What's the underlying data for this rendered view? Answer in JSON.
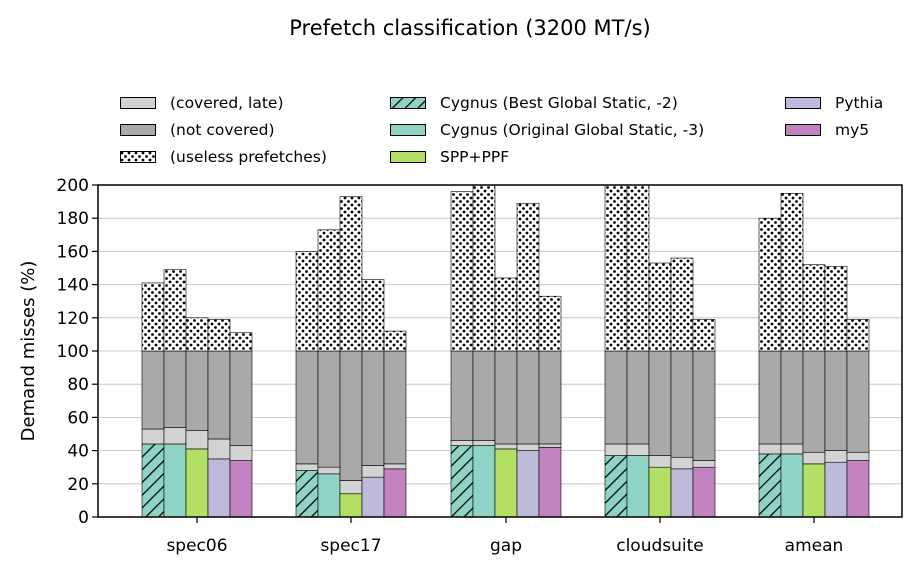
{
  "chart_data": {
    "type": "bar",
    "stacked": true,
    "title": "Prefetch classification (3200 MT/s)",
    "xlabel": "",
    "ylabel": "Demand misses (%)",
    "ylim": [
      0,
      200
    ],
    "yticks": [
      0,
      20,
      40,
      60,
      80,
      100,
      120,
      140,
      160,
      180,
      200
    ],
    "grid": "y",
    "legend_position": "top",
    "categories": [
      "spec06",
      "spec17",
      "gap",
      "cloudsuite",
      "amean"
    ],
    "prefetchers": [
      {
        "name": "Cygnus (Best Global Static, -2)",
        "color": "#8fd3c5",
        "hatch": true
      },
      {
        "name": "Cygnus (Original Global Static, -3)",
        "color": "#8fd3c5",
        "hatch": false
      },
      {
        "name": "SPP+PPF",
        "color": "#b2df64",
        "hatch": false
      },
      {
        "name": "Pythia",
        "color": "#bebada",
        "hatch": false
      },
      {
        "name": "my5",
        "color": "#c283c0",
        "hatch": false
      }
    ],
    "segment_types": [
      {
        "name": "(covered, late)",
        "color": "#d3d3d3"
      },
      {
        "name": "(not covered)",
        "color": "#a9a9a9"
      },
      {
        "name": "(useless prefetches)",
        "color": "#ffffff",
        "dotted": true
      }
    ],
    "series": [
      {
        "name": "Cygnus (Best Global Static, -2)",
        "covered_timely": [
          44,
          28,
          43,
          37,
          38
        ],
        "covered_late": [
          9,
          4,
          3,
          7,
          6
        ],
        "not_covered": [
          47,
          68,
          54,
          56,
          56
        ],
        "useless": [
          41,
          60,
          96,
          100,
          80
        ]
      },
      {
        "name": "Cygnus (Original Global Static, -3)",
        "covered_timely": [
          44,
          26,
          43,
          37,
          38
        ],
        "covered_late": [
          10,
          4,
          3,
          7,
          6
        ],
        "not_covered": [
          46,
          70,
          54,
          56,
          56
        ],
        "useless": [
          49,
          73,
          100,
          100,
          95
        ]
      },
      {
        "name": "SPP+PPF",
        "covered_timely": [
          41,
          14,
          41,
          30,
          32
        ],
        "covered_late": [
          11,
          8,
          3,
          7,
          7
        ],
        "not_covered": [
          48,
          78,
          56,
          63,
          61
        ],
        "useless": [
          20,
          93,
          44,
          53,
          52
        ]
      },
      {
        "name": "Pythia",
        "covered_timely": [
          35,
          24,
          40,
          29,
          33
        ],
        "covered_late": [
          12,
          7,
          4,
          7,
          7
        ],
        "not_covered": [
          53,
          69,
          56,
          64,
          60
        ],
        "useless": [
          19,
          43,
          89,
          56,
          51
        ]
      },
      {
        "name": "my5",
        "covered_timely": [
          34,
          29,
          42,
          30,
          34
        ],
        "covered_late": [
          9,
          3,
          2,
          4,
          5
        ],
        "not_covered": [
          57,
          68,
          56,
          66,
          61
        ],
        "useless": [
          11,
          12,
          33,
          19,
          19
        ]
      }
    ]
  },
  "legend": {
    "col1": [
      "(covered, late)",
      "(not covered)",
      "(useless prefetches)"
    ],
    "col2": [
      "Cygnus (Best Global Static, -2)",
      "Cygnus (Original Global Static, -3)",
      "SPP+PPF"
    ],
    "col3": [
      "Pythia",
      "my5"
    ]
  }
}
